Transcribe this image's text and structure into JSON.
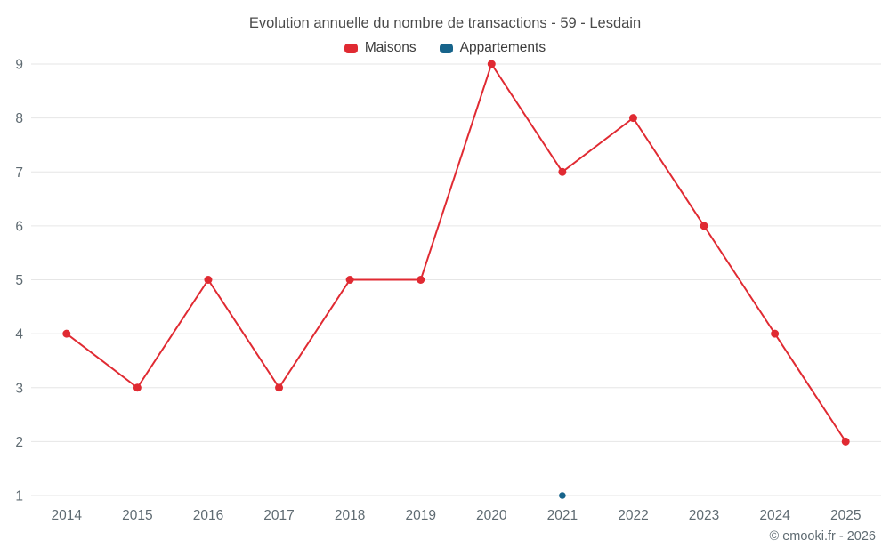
{
  "title": "Evolution annuelle du nombre de transactions - 59 - Lesdain",
  "legend": [
    {
      "label": "Maisons",
      "color": "#e02a32"
    },
    {
      "label": "Appartements",
      "color": "#17648b"
    }
  ],
  "footer": "© emooki.fr - 2026",
  "colors": {
    "gridline": "#e6e6e6",
    "tick_text": "#5f6b72"
  },
  "chart_data": {
    "type": "line",
    "title": "Evolution annuelle du nombre de transactions - 59 - Lesdain",
    "categories": [
      "2014",
      "2015",
      "2016",
      "2017",
      "2018",
      "2019",
      "2020",
      "2021",
      "2022",
      "2023",
      "2024",
      "2025"
    ],
    "series": [
      {
        "name": "Maisons",
        "color": "#e02a32",
        "marker_radius": 4.5,
        "values": [
          4,
          3,
          5,
          3,
          5,
          5,
          9,
          7,
          8,
          6,
          4,
          2
        ]
      },
      {
        "name": "Appartements",
        "color": "#17648b",
        "marker_radius": 3.8,
        "values": [
          null,
          null,
          null,
          null,
          null,
          null,
          null,
          1,
          null,
          null,
          null,
          null
        ]
      }
    ],
    "xlabel": "",
    "ylabel": "",
    "ylim": [
      1,
      9
    ],
    "yticks": [
      1,
      2,
      3,
      4,
      5,
      6,
      7,
      8,
      9
    ],
    "grid": true,
    "legend_position": "top"
  }
}
